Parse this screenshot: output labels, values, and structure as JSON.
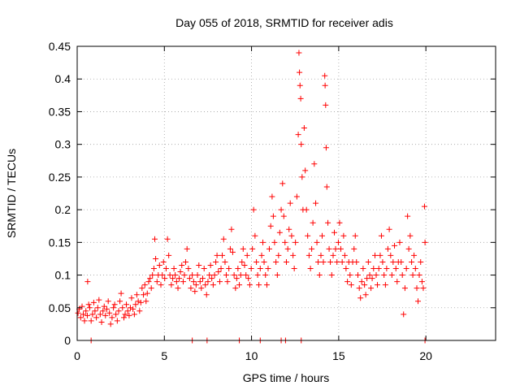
{
  "chart_data": {
    "type": "scatter",
    "title": "Day 055 of 2018, SRMTID for receiver adis",
    "xlabel": "GPS time / hours",
    "ylabel": "SRMTID / TECUs",
    "xlim": [
      0,
      24
    ],
    "ylim": [
      0,
      0.45
    ],
    "x_ticks": [
      "0",
      "5",
      "10",
      "15",
      "20"
    ],
    "y_ticks": [
      "0",
      "0.05",
      "0.1",
      "0.15",
      "0.2",
      "0.25",
      "0.3",
      "0.35",
      "0.4",
      "0.45"
    ],
    "grid": true,
    "marker": "plus",
    "color": "#ff0000",
    "series": [
      {
        "points": [
          [
            0.05,
            0.042
          ],
          [
            0.12,
            0.048
          ],
          [
            0.2,
            0.035
          ],
          [
            0.28,
            0.052
          ],
          [
            0.35,
            0.04
          ],
          [
            0.42,
            0.03
          ],
          [
            0.5,
            0.045
          ],
          [
            0.58,
            0.038
          ],
          [
            0.6,
            0.09
          ],
          [
            0.66,
            0.055
          ],
          [
            0.72,
            0.05
          ],
          [
            0.8,
            0.03
          ],
          [
            0.88,
            0.04
          ],
          [
            0.95,
            0.058
          ],
          [
            1.02,
            0.045
          ],
          [
            1.1,
            0.035
          ],
          [
            1.18,
            0.05
          ],
          [
            1.25,
            0.062
          ],
          [
            1.32,
            0.04
          ],
          [
            1.4,
            0.028
          ],
          [
            1.48,
            0.045
          ],
          [
            1.55,
            0.052
          ],
          [
            1.62,
            0.038
          ],
          [
            1.7,
            0.048
          ],
          [
            1.78,
            0.06
          ],
          [
            1.85,
            0.042
          ],
          [
            1.92,
            0.025
          ],
          [
            2.0,
            0.035
          ],
          [
            2.08,
            0.05
          ],
          [
            2.15,
            0.055
          ],
          [
            2.22,
            0.04
          ],
          [
            2.3,
            0.03
          ],
          [
            2.38,
            0.045
          ],
          [
            2.45,
            0.06
          ],
          [
            2.52,
            0.072
          ],
          [
            2.6,
            0.05
          ],
          [
            2.68,
            0.035
          ],
          [
            2.75,
            0.04
          ],
          [
            2.82,
            0.055
          ],
          [
            2.9,
            0.045
          ],
          [
            2.98,
            0.038
          ],
          [
            3.05,
            0.05
          ],
          [
            3.12,
            0.065
          ],
          [
            3.2,
            0.048
          ],
          [
            3.28,
            0.04
          ],
          [
            3.35,
            0.055
          ],
          [
            3.42,
            0.07
          ],
          [
            3.5,
            0.06
          ],
          [
            3.58,
            0.045
          ],
          [
            3.65,
            0.058
          ],
          [
            3.72,
            0.08
          ],
          [
            3.8,
            0.07
          ],
          [
            3.88,
            0.085
          ],
          [
            3.95,
            0.06
          ],
          [
            4.02,
            0.072
          ],
          [
            4.1,
            0.09
          ],
          [
            4.18,
            0.095
          ],
          [
            4.25,
            0.08
          ],
          [
            4.32,
            0.1
          ],
          [
            4.4,
            0.11
          ],
          [
            4.45,
            0.155
          ],
          [
            4.5,
            0.125
          ],
          [
            4.58,
            0.09
          ],
          [
            4.65,
            0.1
          ],
          [
            4.72,
            0.115
          ],
          [
            4.8,
            0.085
          ],
          [
            4.88,
            0.1
          ],
          [
            4.95,
            0.12
          ],
          [
            5.02,
            0.095
          ],
          [
            5.1,
            0.11
          ],
          [
            5.18,
            0.155
          ],
          [
            5.25,
            0.13
          ],
          [
            5.32,
            0.1
          ],
          [
            5.4,
            0.085
          ],
          [
            5.48,
            0.095
          ],
          [
            5.55,
            0.11
          ],
          [
            5.62,
            0.1
          ],
          [
            5.7,
            0.09
          ],
          [
            5.78,
            0.08
          ],
          [
            5.85,
            0.095
          ],
          [
            5.92,
            0.105
          ],
          [
            6.0,
            0.115
          ],
          [
            6.08,
            0.09
          ],
          [
            6.15,
            0.1
          ],
          [
            6.22,
            0.12
          ],
          [
            6.3,
            0.14
          ],
          [
            6.38,
            0.11
          ],
          [
            6.45,
            0.095
          ],
          [
            6.52,
            0.08
          ],
          [
            6.6,
            0.1
          ],
          [
            6.68,
            0.09
          ],
          [
            6.75,
            0.075
          ],
          [
            6.82,
            0.085
          ],
          [
            6.9,
            0.1
          ],
          [
            6.98,
            0.115
          ],
          [
            7.05,
            0.09
          ],
          [
            7.12,
            0.08
          ],
          [
            7.2,
            0.095
          ],
          [
            7.28,
            0.11
          ],
          [
            7.35,
            0.085
          ],
          [
            7.42,
            0.07
          ],
          [
            7.5,
            0.09
          ],
          [
            7.58,
            0.1
          ],
          [
            7.65,
            0.115
          ],
          [
            7.72,
            0.095
          ],
          [
            7.8,
            0.085
          ],
          [
            7.88,
            0.1
          ],
          [
            7.95,
            0.12
          ],
          [
            8.02,
            0.13
          ],
          [
            8.1,
            0.105
          ],
          [
            8.18,
            0.09
          ],
          [
            8.25,
            0.11
          ],
          [
            8.32,
            0.13
          ],
          [
            8.4,
            0.155
          ],
          [
            8.48,
            0.12
          ],
          [
            8.55,
            0.1
          ],
          [
            8.62,
            0.09
          ],
          [
            8.7,
            0.11
          ],
          [
            8.78,
            0.14
          ],
          [
            8.85,
            0.17
          ],
          [
            8.92,
            0.135
          ],
          [
            9.0,
            0.1
          ],
          [
            9.08,
            0.08
          ],
          [
            9.15,
            0.095
          ],
          [
            9.22,
            0.11
          ],
          [
            9.3,
            0.085
          ],
          [
            9.38,
            0.1
          ],
          [
            9.45,
            0.12
          ],
          [
            9.52,
            0.14
          ],
          [
            9.6,
            0.115
          ],
          [
            9.68,
            0.1
          ],
          [
            9.75,
            0.13
          ],
          [
            9.82,
            0.095
          ],
          [
            9.9,
            0.085
          ],
          [
            9.98,
            0.11
          ],
          [
            10.05,
            0.14
          ],
          [
            10.12,
            0.2
          ],
          [
            10.2,
            0.16
          ],
          [
            10.28,
            0.12
          ],
          [
            10.35,
            0.1
          ],
          [
            10.42,
            0.085
          ],
          [
            10.5,
            0.11
          ],
          [
            10.58,
            0.13
          ],
          [
            10.65,
            0.15
          ],
          [
            10.72,
            0.12
          ],
          [
            10.8,
            0.1
          ],
          [
            10.88,
            0.085
          ],
          [
            10.95,
            0.11
          ],
          [
            11.02,
            0.14
          ],
          [
            11.1,
            0.175
          ],
          [
            11.18,
            0.22
          ],
          [
            11.25,
            0.19
          ],
          [
            11.32,
            0.15
          ],
          [
            11.4,
            0.12
          ],
          [
            11.48,
            0.1
          ],
          [
            11.55,
            0.13
          ],
          [
            11.62,
            0.165
          ],
          [
            11.7,
            0.2
          ],
          [
            11.78,
            0.24
          ],
          [
            11.85,
            0.19
          ],
          [
            11.92,
            0.15
          ],
          [
            12.0,
            0.12
          ],
          [
            12.08,
            0.14
          ],
          [
            12.15,
            0.17
          ],
          [
            12.22,
            0.21
          ],
          [
            12.3,
            0.16
          ],
          [
            12.38,
            0.13
          ],
          [
            12.45,
            0.11
          ],
          [
            12.52,
            0.15
          ],
          [
            12.6,
            0.22
          ],
          [
            12.68,
            0.315
          ],
          [
            12.72,
            0.44
          ],
          [
            12.75,
            0.41
          ],
          [
            12.78,
            0.39
          ],
          [
            12.82,
            0.37
          ],
          [
            12.85,
            0.3
          ],
          [
            12.9,
            0.25
          ],
          [
            12.95,
            0.2
          ],
          [
            13.02,
            0.325
          ],
          [
            13.08,
            0.26
          ],
          [
            13.15,
            0.2
          ],
          [
            13.22,
            0.16
          ],
          [
            13.3,
            0.13
          ],
          [
            13.38,
            0.11
          ],
          [
            13.45,
            0.14
          ],
          [
            13.52,
            0.18
          ],
          [
            13.6,
            0.27
          ],
          [
            13.68,
            0.21
          ],
          [
            13.75,
            0.15
          ],
          [
            13.82,
            0.12
          ],
          [
            13.9,
            0.1
          ],
          [
            13.98,
            0.13
          ],
          [
            14.05,
            0.16
          ],
          [
            14.12,
            0.12
          ],
          [
            14.2,
            0.405
          ],
          [
            14.22,
            0.39
          ],
          [
            14.25,
            0.36
          ],
          [
            14.28,
            0.295
          ],
          [
            14.32,
            0.235
          ],
          [
            14.38,
            0.18
          ],
          [
            14.45,
            0.14
          ],
          [
            14.52,
            0.12
          ],
          [
            14.6,
            0.1
          ],
          [
            14.68,
            0.13
          ],
          [
            14.75,
            0.165
          ],
          [
            14.82,
            0.14
          ],
          [
            14.9,
            0.12
          ],
          [
            14.98,
            0.15
          ],
          [
            15.05,
            0.18
          ],
          [
            15.12,
            0.14
          ],
          [
            15.2,
            0.12
          ],
          [
            15.28,
            0.16
          ],
          [
            15.35,
            0.13
          ],
          [
            15.42,
            0.11
          ],
          [
            15.5,
            0.09
          ],
          [
            15.58,
            0.12
          ],
          [
            15.65,
            0.1
          ],
          [
            15.72,
            0.085
          ],
          [
            15.8,
            0.12
          ],
          [
            15.88,
            0.14
          ],
          [
            15.95,
            0.16
          ],
          [
            16.02,
            0.12
          ],
          [
            16.1,
            0.1
          ],
          [
            16.18,
            0.08
          ],
          [
            16.25,
            0.065
          ],
          [
            16.32,
            0.09
          ],
          [
            16.4,
            0.11
          ],
          [
            16.48,
            0.085
          ],
          [
            16.55,
            0.07
          ],
          [
            16.62,
            0.095
          ],
          [
            16.7,
            0.12
          ],
          [
            16.78,
            0.1
          ],
          [
            16.85,
            0.08
          ],
          [
            16.92,
            0.095
          ],
          [
            17.0,
            0.11
          ],
          [
            17.08,
            0.13
          ],
          [
            17.15,
            0.1
          ],
          [
            17.22,
            0.085
          ],
          [
            17.3,
            0.11
          ],
          [
            17.38,
            0.13
          ],
          [
            17.45,
            0.16
          ],
          [
            17.52,
            0.12
          ],
          [
            17.6,
            0.1
          ],
          [
            17.68,
            0.085
          ],
          [
            17.75,
            0.11
          ],
          [
            17.82,
            0.14
          ],
          [
            17.9,
            0.17
          ],
          [
            17.98,
            0.13
          ],
          [
            18.05,
            0.1
          ],
          [
            18.12,
            0.12
          ],
          [
            18.2,
            0.145
          ],
          [
            18.28,
            0.11
          ],
          [
            18.35,
            0.09
          ],
          [
            18.42,
            0.12
          ],
          [
            18.5,
            0.15
          ],
          [
            18.58,
            0.12
          ],
          [
            18.65,
            0.1
          ],
          [
            18.72,
            0.04
          ],
          [
            18.8,
            0.08
          ],
          [
            18.88,
            0.11
          ],
          [
            18.95,
            0.19
          ],
          [
            19.02,
            0.14
          ],
          [
            19.1,
            0.16
          ],
          [
            19.18,
            0.12
          ],
          [
            19.25,
            0.1
          ],
          [
            19.32,
            0.13
          ],
          [
            19.4,
            0.11
          ],
          [
            19.48,
            0.08
          ],
          [
            19.55,
            0.06
          ],
          [
            19.62,
            0.1
          ],
          [
            19.7,
            0.12
          ],
          [
            19.78,
            0.09
          ],
          [
            19.85,
            0.08
          ],
          [
            19.92,
            0.205
          ],
          [
            19.95,
            0.15
          ],
          [
            0.8,
            0.0
          ],
          [
            6.6,
            0.0
          ],
          [
            7.45,
            0.0
          ],
          [
            9.3,
            0.0
          ],
          [
            10.5,
            0.0
          ],
          [
            11.7,
            0.0
          ],
          [
            11.95,
            0.0
          ],
          [
            12.85,
            0.0
          ],
          [
            19.95,
            0.0
          ]
        ]
      }
    ]
  }
}
